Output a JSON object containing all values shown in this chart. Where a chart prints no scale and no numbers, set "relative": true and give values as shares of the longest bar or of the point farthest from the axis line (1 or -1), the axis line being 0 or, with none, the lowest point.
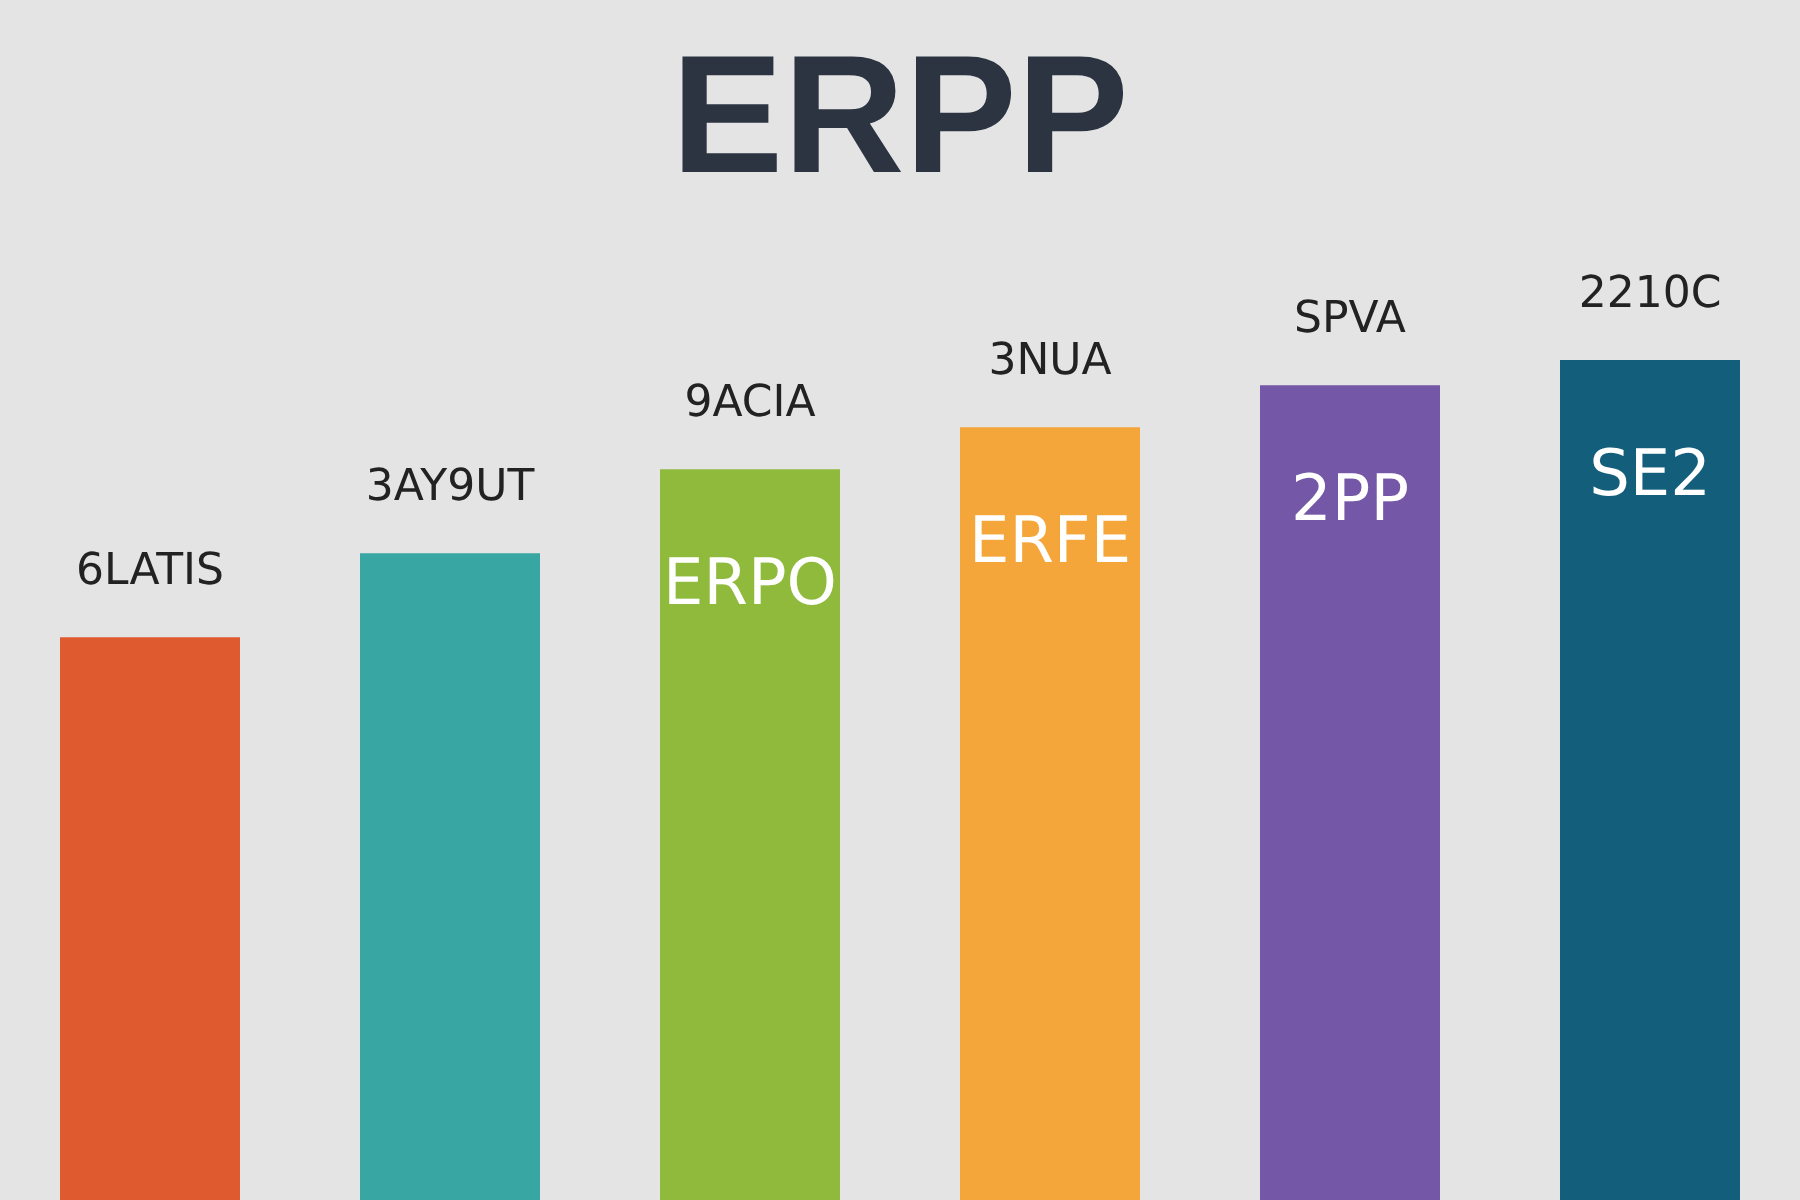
{
  "chart_data": {
    "type": "bar",
    "title": "ERPP",
    "relative": true,
    "categories": [
      "6LATIS",
      "3AY9UT",
      "9ACIA",
      "3NUA",
      "SPVA",
      "2210C"
    ],
    "values": [
      0.67,
      0.77,
      0.87,
      0.92,
      0.97,
      1
    ],
    "colors": [
      "#e05a30",
      "#38a7a4",
      "#8fba3c",
      "#f5a63a",
      "#7457a6",
      "#135e7a"
    ],
    "annotations": [
      "ERPO",
      "ERFE",
      "2PP",
      "SE2"
    ]
  }
}
